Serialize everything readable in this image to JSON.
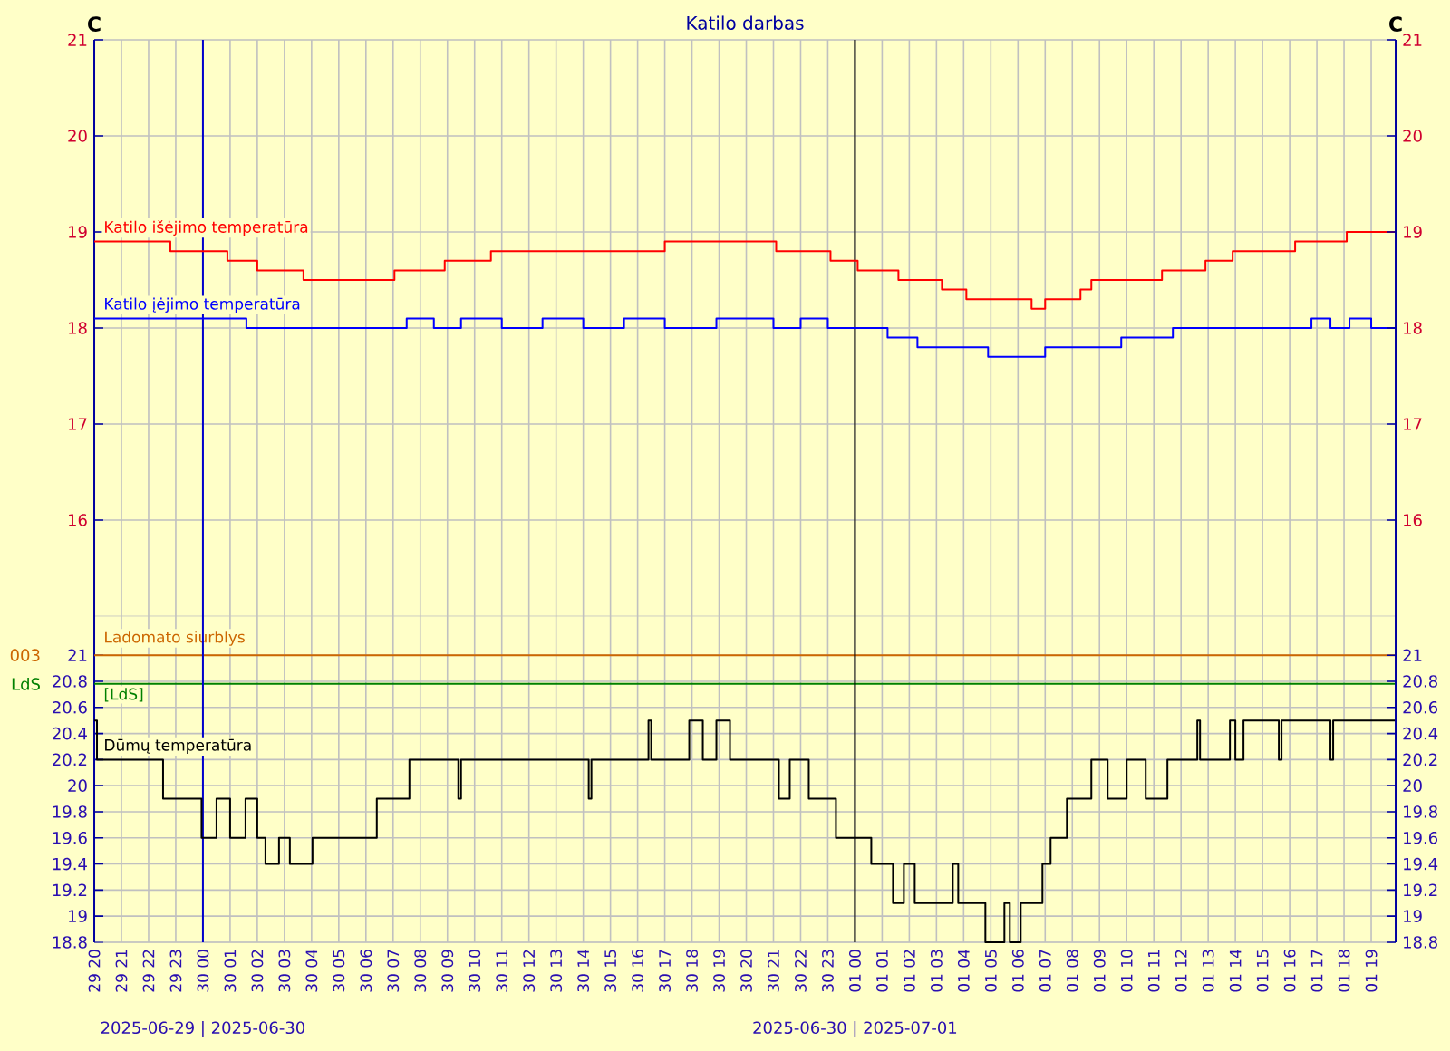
{
  "chart_data": [
    {
      "type": "step",
      "title": "Katilo darbas",
      "ylabel": "C",
      "y2label": "C",
      "xlim": [
        "2025-06-29T20:00",
        "2025-07-01T19:54"
      ],
      "xticks": [
        {
          "value": "2025-06-29T20:00",
          "label": null
        },
        {
          "value": "2025-06-29T21:00",
          "label": null
        },
        {
          "value": "2025-06-29T22:00",
          "label": null
        },
        {
          "value": "2025-06-29T23:00",
          "label": null
        },
        {
          "value": "2025-06-30T00:00",
          "label": null
        },
        {
          "value": "2025-06-30T01:00",
          "label": null
        },
        {
          "value": "2025-06-30T02:00",
          "label": null
        },
        {
          "value": "2025-06-30T03:00",
          "label": null
        },
        {
          "value": "2025-06-30T04:00",
          "label": null
        },
        {
          "value": "2025-06-30T05:00",
          "label": null
        },
        {
          "value": "2025-06-30T06:00",
          "label": null
        },
        {
          "value": "2025-06-30T07:00",
          "label": null
        },
        {
          "value": "2025-06-30T08:00",
          "label": null
        },
        {
          "value": "2025-06-30T09:00",
          "label": null
        },
        {
          "value": "2025-06-30T10:00",
          "label": null
        },
        {
          "value": "2025-06-30T11:00",
          "label": null
        },
        {
          "value": "2025-06-30T12:00",
          "label": null
        },
        {
          "value": "2025-06-30T13:00",
          "label": null
        },
        {
          "value": "2025-06-30T14:00",
          "label": null
        },
        {
          "value": "2025-06-30T15:00",
          "label": null
        },
        {
          "value": "2025-06-30T16:00",
          "label": null
        },
        {
          "value": "2025-06-30T17:00",
          "label": null
        },
        {
          "value": "2025-06-30T18:00",
          "label": null
        },
        {
          "value": "2025-06-30T19:00",
          "label": null
        },
        {
          "value": "2025-06-30T20:00",
          "label": null
        },
        {
          "value": "2025-06-30T21:00",
          "label": null
        },
        {
          "value": "2025-06-30T22:00",
          "label": null
        },
        {
          "value": "2025-06-30T23:00",
          "label": null
        },
        {
          "value": "2025-07-01T00:00",
          "label": null
        },
        {
          "value": "2025-07-01T01:00",
          "label": null
        },
        {
          "value": "2025-07-01T02:00",
          "label": null
        },
        {
          "value": "2025-07-01T03:00",
          "label": null
        },
        {
          "value": "2025-07-01T04:00",
          "label": null
        },
        {
          "value": "2025-07-01T05:00",
          "label": null
        },
        {
          "value": "2025-07-01T06:00",
          "label": null
        },
        {
          "value": "2025-07-01T07:00",
          "label": null
        },
        {
          "value": "2025-07-01T08:00",
          "label": null
        },
        {
          "value": "2025-07-01T09:00",
          "label": null
        },
        {
          "value": "2025-07-01T10:00",
          "label": null
        },
        {
          "value": "2025-07-01T11:00",
          "label": null
        },
        {
          "value": "2025-07-01T12:00",
          "label": null
        },
        {
          "value": "2025-07-01T13:00",
          "label": null
        },
        {
          "value": "2025-07-01T14:00",
          "label": null
        },
        {
          "value": "2025-07-01T15:00",
          "label": null
        },
        {
          "value": "2025-07-01T16:00",
          "label": null
        },
        {
          "value": "2025-07-01T17:00",
          "label": null
        },
        {
          "value": "2025-07-01T18:00",
          "label": null
        },
        {
          "value": "2025-07-01T19:00",
          "label": null
        }
      ],
      "ylim": [
        15,
        21
      ],
      "yticks": [
        16,
        17,
        18,
        19,
        20,
        21
      ],
      "y2lim": [
        15,
        21
      ],
      "y2ticks": [
        16,
        17,
        18,
        19,
        20,
        21
      ],
      "tick_labels": "y",
      "grid": true,
      "series": [
        {
          "name": "Katilo išėjimo temperatūra",
          "color": "#ff0000",
          "x": [
            "2025-06-29T20:00",
            "2025-06-29T22:48",
            "2025-06-30T00:54",
            "2025-06-30T02:00",
            "2025-06-30T03:42",
            "2025-06-30T07:03",
            "2025-06-30T08:54",
            "2025-06-30T10:36",
            "2025-06-30T17:00",
            "2025-06-30T21:06",
            "2025-06-30T23:06",
            "2025-07-01T00:06",
            "2025-07-01T01:36",
            "2025-07-01T03:12",
            "2025-07-01T04:06",
            "2025-07-01T06:30",
            "2025-07-01T07:00",
            "2025-07-01T08:18",
            "2025-07-01T08:42",
            "2025-07-01T11:18",
            "2025-07-01T12:54",
            "2025-07-01T13:54",
            "2025-07-01T16:12",
            "2025-07-01T18:06",
            "2025-07-01T19:54"
          ],
          "values": [
            18.9,
            18.8,
            18.7,
            18.6,
            18.5,
            18.6,
            18.7,
            18.8,
            18.9,
            18.8,
            18.7,
            18.6,
            18.5,
            18.4,
            18.3,
            18.2,
            18.3,
            18.4,
            18.5,
            18.6,
            18.7,
            18.8,
            18.9,
            19.0,
            19.0
          ]
        },
        {
          "name": "Katilo įėjimo temperatūra",
          "color": "#0000ff",
          "x": [
            "2025-06-29T20:00",
            "2025-06-30T01:36",
            "2025-06-30T07:30",
            "2025-06-30T08:30",
            "2025-06-30T09:30",
            "2025-06-30T11:00",
            "2025-06-30T12:30",
            "2025-06-30T14:00",
            "2025-06-30T15:30",
            "2025-06-30T17:00",
            "2025-06-30T18:54",
            "2025-06-30T21:00",
            "2025-06-30T22:00",
            "2025-06-30T23:00",
            "2025-07-01T00:06",
            "2025-07-01T01:12",
            "2025-07-01T02:18",
            "2025-07-01T04:54",
            "2025-07-01T07:00",
            "2025-07-01T09:48",
            "2025-07-01T11:42",
            "2025-07-01T16:48",
            "2025-07-01T17:30",
            "2025-07-01T18:12",
            "2025-07-01T19:00",
            "2025-07-01T19:54"
          ],
          "values": [
            18.1,
            18.0,
            18.1,
            18.0,
            18.1,
            18.0,
            18.1,
            18.0,
            18.1,
            18.0,
            18.1,
            18.0,
            18.1,
            18.0,
            18.0,
            17.9,
            17.8,
            17.7,
            17.8,
            17.9,
            18.0,
            18.1,
            18.0,
            18.1,
            18.0,
            18.0
          ]
        }
      ],
      "ref_lines": [
        {
          "axis": "x",
          "value": "2025-06-30T00:00",
          "color": "#0000cc"
        },
        {
          "axis": "x",
          "value": "2025-07-01T00:00",
          "color": "#000000"
        }
      ]
    },
    {
      "type": "step",
      "xlim": [
        "2025-06-29T20:00",
        "2025-07-01T19:54"
      ],
      "xticks": [
        {
          "value": "2025-06-29T20:00",
          "label": "29 20"
        },
        {
          "value": "2025-06-29T21:00",
          "label": "29 21"
        },
        {
          "value": "2025-06-29T22:00",
          "label": "29 22"
        },
        {
          "value": "2025-06-29T23:00",
          "label": "29 23"
        },
        {
          "value": "2025-06-30T00:00",
          "label": "30 00"
        },
        {
          "value": "2025-06-30T01:00",
          "label": "30 01"
        },
        {
          "value": "2025-06-30T02:00",
          "label": "30 02"
        },
        {
          "value": "2025-06-30T03:00",
          "label": "30 03"
        },
        {
          "value": "2025-06-30T04:00",
          "label": "30 04"
        },
        {
          "value": "2025-06-30T05:00",
          "label": "30 05"
        },
        {
          "value": "2025-06-30T06:00",
          "label": "30 06"
        },
        {
          "value": "2025-06-30T07:00",
          "label": "30 07"
        },
        {
          "value": "2025-06-30T08:00",
          "label": "30 08"
        },
        {
          "value": "2025-06-30T09:00",
          "label": "30 09"
        },
        {
          "value": "2025-06-30T10:00",
          "label": "30 10"
        },
        {
          "value": "2025-06-30T11:00",
          "label": "30 11"
        },
        {
          "value": "2025-06-30T12:00",
          "label": "30 12"
        },
        {
          "value": "2025-06-30T13:00",
          "label": "30 13"
        },
        {
          "value": "2025-06-30T14:00",
          "label": "30 14"
        },
        {
          "value": "2025-06-30T15:00",
          "label": "30 15"
        },
        {
          "value": "2025-06-30T16:00",
          "label": "30 16"
        },
        {
          "value": "2025-06-30T17:00",
          "label": "30 17"
        },
        {
          "value": "2025-06-30T18:00",
          "label": "30 18"
        },
        {
          "value": "2025-06-30T19:00",
          "label": "30 19"
        },
        {
          "value": "2025-06-30T20:00",
          "label": "30 20"
        },
        {
          "value": "2025-06-30T21:00",
          "label": "30 21"
        },
        {
          "value": "2025-06-30T22:00",
          "label": "30 22"
        },
        {
          "value": "2025-06-30T23:00",
          "label": "30 23"
        },
        {
          "value": "2025-07-01T00:00",
          "label": "01 00"
        },
        {
          "value": "2025-07-01T01:00",
          "label": "01 01"
        },
        {
          "value": "2025-07-01T02:00",
          "label": "01 02"
        },
        {
          "value": "2025-07-01T03:00",
          "label": "01 03"
        },
        {
          "value": "2025-07-01T04:00",
          "label": "01 04"
        },
        {
          "value": "2025-07-01T05:00",
          "label": "01 05"
        },
        {
          "value": "2025-07-01T06:00",
          "label": "01 06"
        },
        {
          "value": "2025-07-01T07:00",
          "label": "01 07"
        },
        {
          "value": "2025-07-01T08:00",
          "label": "01 08"
        },
        {
          "value": "2025-07-01T09:00",
          "label": "01 09"
        },
        {
          "value": "2025-07-01T10:00",
          "label": "01 10"
        },
        {
          "value": "2025-07-01T11:00",
          "label": "01 11"
        },
        {
          "value": "2025-07-01T12:00",
          "label": "01 12"
        },
        {
          "value": "2025-07-01T13:00",
          "label": "01 13"
        },
        {
          "value": "2025-07-01T14:00",
          "label": "01 14"
        },
        {
          "value": "2025-07-01T15:00",
          "label": "01 15"
        },
        {
          "value": "2025-07-01T16:00",
          "label": "01 16"
        },
        {
          "value": "2025-07-01T17:00",
          "label": "01 17"
        },
        {
          "value": "2025-07-01T18:00",
          "label": "01 18"
        },
        {
          "value": "2025-07-01T19:00",
          "label": "01 19"
        }
      ],
      "ylim": [
        18.8,
        21.3
      ],
      "yticks": [
        18.8,
        19,
        19.2,
        19.4,
        19.6,
        19.8,
        20,
        20.2,
        20.4,
        20.6,
        20.8,
        21
      ],
      "y2lim": [
        18.8,
        21.3
      ],
      "y2ticks": [
        18.8,
        19,
        19.2,
        19.4,
        19.6,
        19.8,
        20,
        20.2,
        20.4,
        20.6,
        20.8,
        21
      ],
      "grid": true,
      "series": [
        {
          "name": "Dūmų temperatūra",
          "color": "#000000",
          "x": [
            "2025-06-29T20:00",
            "2025-06-29T20:06",
            "2025-06-29T22:32",
            "2025-06-29T23:57",
            "2025-06-30T00:30",
            "2025-06-30T01:00",
            "2025-06-30T01:34",
            "2025-06-30T02:00",
            "2025-06-30T02:18",
            "2025-06-30T02:48",
            "2025-06-30T03:12",
            "2025-06-30T04:02",
            "2025-06-30T06:24",
            "2025-06-30T07:36",
            "2025-06-30T09:24",
            "2025-06-30T09:30",
            "2025-06-30T14:12",
            "2025-06-30T14:18",
            "2025-06-30T16:24",
            "2025-06-30T16:30",
            "2025-06-30T17:54",
            "2025-06-30T18:24",
            "2025-06-30T18:54",
            "2025-06-30T19:24",
            "2025-06-30T21:12",
            "2025-06-30T21:36",
            "2025-06-30T22:18",
            "2025-06-30T23:18",
            "2025-07-01T00:36",
            "2025-07-01T01:24",
            "2025-07-01T01:48",
            "2025-07-01T02:12",
            "2025-07-01T03:36",
            "2025-07-01T03:48",
            "2025-07-01T04:48",
            "2025-07-01T05:30",
            "2025-07-01T05:42",
            "2025-07-01T06:06",
            "2025-07-01T06:54",
            "2025-07-01T07:12",
            "2025-07-01T07:48",
            "2025-07-01T08:42",
            "2025-07-01T09:18",
            "2025-07-01T10:00",
            "2025-07-01T10:42",
            "2025-07-01T11:30",
            "2025-07-01T12:36",
            "2025-07-01T12:42",
            "2025-07-01T13:48",
            "2025-07-01T14:00",
            "2025-07-01T14:18",
            "2025-07-01T15:36",
            "2025-07-01T15:42",
            "2025-07-01T17:30",
            "2025-07-01T17:36",
            "2025-07-01T19:54"
          ],
          "values": [
            20.5,
            20.2,
            19.9,
            19.6,
            19.9,
            19.6,
            19.9,
            19.6,
            19.4,
            19.6,
            19.4,
            19.6,
            19.9,
            20.2,
            19.9,
            20.2,
            19.9,
            20.2,
            20.5,
            20.2,
            20.5,
            20.2,
            20.5,
            20.2,
            19.9,
            20.2,
            19.9,
            19.6,
            19.4,
            19.1,
            19.4,
            19.1,
            19.4,
            19.1,
            18.8,
            19.1,
            18.8,
            19.1,
            19.4,
            19.6,
            19.9,
            20.2,
            19.9,
            20.2,
            19.9,
            20.2,
            20.5,
            20.2,
            20.5,
            20.2,
            20.5,
            20.2,
            20.5,
            20.2,
            20.5,
            20.5
          ]
        }
      ],
      "ref_lines": [
        {
          "axis": "y",
          "value": 21,
          "label": "Ladomato siurblys",
          "color": "#cc6600"
        },
        {
          "axis": "y",
          "value": 20.78,
          "label": "[LdS]",
          "color": "#008000"
        },
        {
          "axis": "x",
          "value": "2025-06-30T00:00",
          "color": "#0000cc"
        },
        {
          "axis": "x",
          "value": "2025-07-01T00:00",
          "color": "#000000"
        }
      ],
      "annotations": [
        "003",
        "LdS",
        "2025-06-29 | 2025-06-30",
        "2025-06-30 | 2025-07-01"
      ]
    }
  ]
}
